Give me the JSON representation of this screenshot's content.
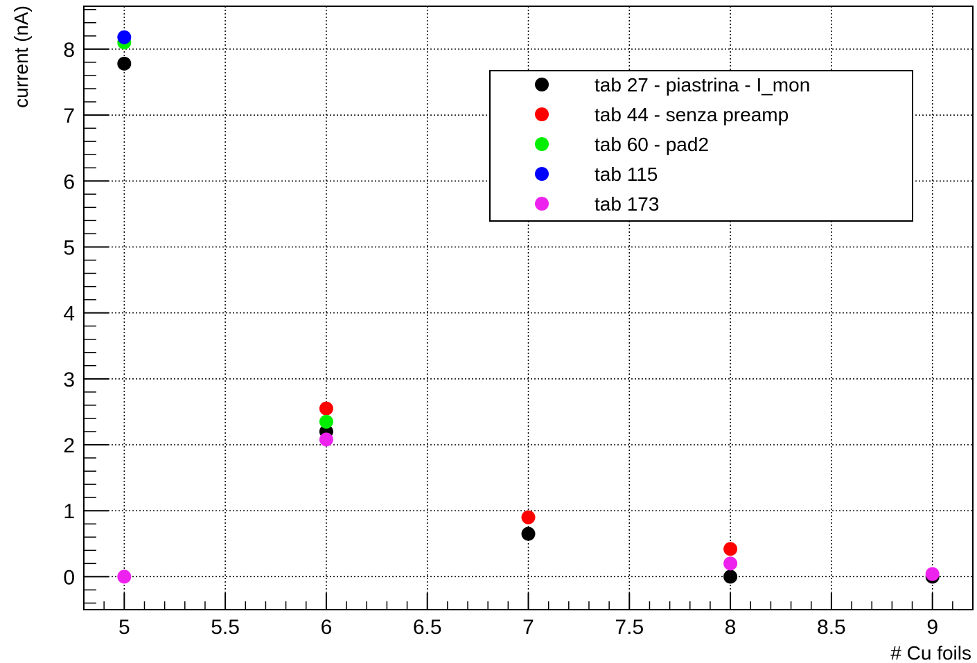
{
  "chart_data": {
    "type": "scatter",
    "xlabel": "# Cu foils",
    "ylabel": "current (nA)",
    "xlim": [
      4.8,
      9.2
    ],
    "ylim": [
      -0.5,
      8.65
    ],
    "xticks": [
      5,
      5.5,
      6,
      6.5,
      7,
      7.5,
      8,
      8.5,
      9
    ],
    "xtick_labels": [
      "5",
      "5.5",
      "6",
      "6.5",
      "7",
      "7.5",
      "8",
      "8.5",
      "9"
    ],
    "yticks": [
      0,
      1,
      2,
      3,
      4,
      5,
      6,
      7,
      8
    ],
    "ytick_labels": [
      "0",
      "1",
      "2",
      "3",
      "4",
      "5",
      "6",
      "7",
      "8"
    ],
    "grid": true,
    "legend_position": "top-right",
    "series": [
      {
        "name": "tab 27 - piastrina - I_mon",
        "color": "#000000",
        "points": [
          [
            5,
            7.78
          ],
          [
            6,
            2.2
          ],
          [
            7,
            0.65
          ],
          [
            8,
            0.0
          ],
          [
            9,
            0.0
          ]
        ]
      },
      {
        "name": "tab 44 - senza preamp",
        "color": "#ff0000",
        "points": [
          [
            6,
            2.55
          ],
          [
            7,
            0.9
          ],
          [
            8,
            0.42
          ]
        ]
      },
      {
        "name": "tab 60 - pad2",
        "color": "#00ee00",
        "points": [
          [
            5,
            8.1
          ],
          [
            6,
            2.35
          ]
        ]
      },
      {
        "name": "tab 115",
        "color": "#0000ff",
        "points": [
          [
            5,
            8.18
          ]
        ]
      },
      {
        "name": "tab 173",
        "color": "#ee22ee",
        "points": [
          [
            5,
            0.0
          ],
          [
            6,
            2.08
          ],
          [
            8,
            0.2
          ],
          [
            9,
            0.04
          ]
        ]
      }
    ]
  }
}
